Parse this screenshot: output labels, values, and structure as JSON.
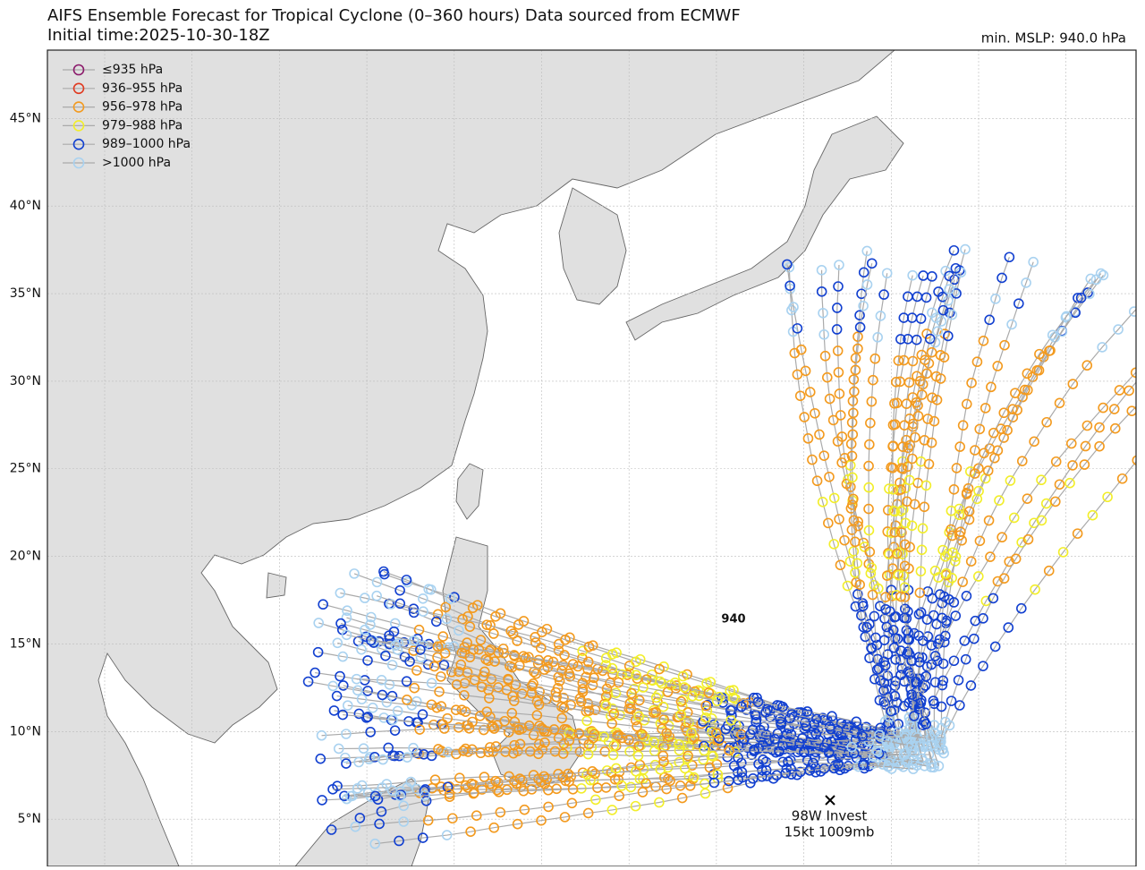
{
  "header": {
    "title": "AIFS Ensemble Forecast for Tropical Cyclone (0–360 hours) Data sourced from ECMWF",
    "subtitle": "Initial time:2025-10-30-18Z",
    "min_mslp": "min. MSLP: 940.0 hPa"
  },
  "map": {
    "ylim": [
      2.3,
      48.9
    ],
    "yticks": [
      {
        "value": 5,
        "label": "5°N"
      },
      {
        "value": 10,
        "label": "10°N"
      },
      {
        "value": 15,
        "label": "15°N"
      },
      {
        "value": 20,
        "label": "20°N"
      },
      {
        "value": 25,
        "label": "25°N"
      },
      {
        "value": 30,
        "label": "30°N"
      },
      {
        "value": 35,
        "label": "35°N"
      },
      {
        "value": 40,
        "label": "40°N"
      },
      {
        "value": 45,
        "label": "45°N"
      }
    ],
    "legend": [
      {
        "name": "≤935 hPa",
        "color": "#8b1a6b"
      },
      {
        "name": "936–955 hPa",
        "color": "#e03a20"
      },
      {
        "name": "956–978 hPa",
        "color": "#f39a1e"
      },
      {
        "name": "979–988 hPa",
        "color": "#f2ee2a"
      },
      {
        "name": "989–1000 hPa",
        "color": "#1240d0"
      },
      {
        "name": ">1000 hPa",
        "color": "#a9d2f0"
      }
    ],
    "annotations": {
      "min_marker": "940",
      "invest_name": "98W Invest",
      "invest_info": "15kt 1009mb"
    }
  }
}
